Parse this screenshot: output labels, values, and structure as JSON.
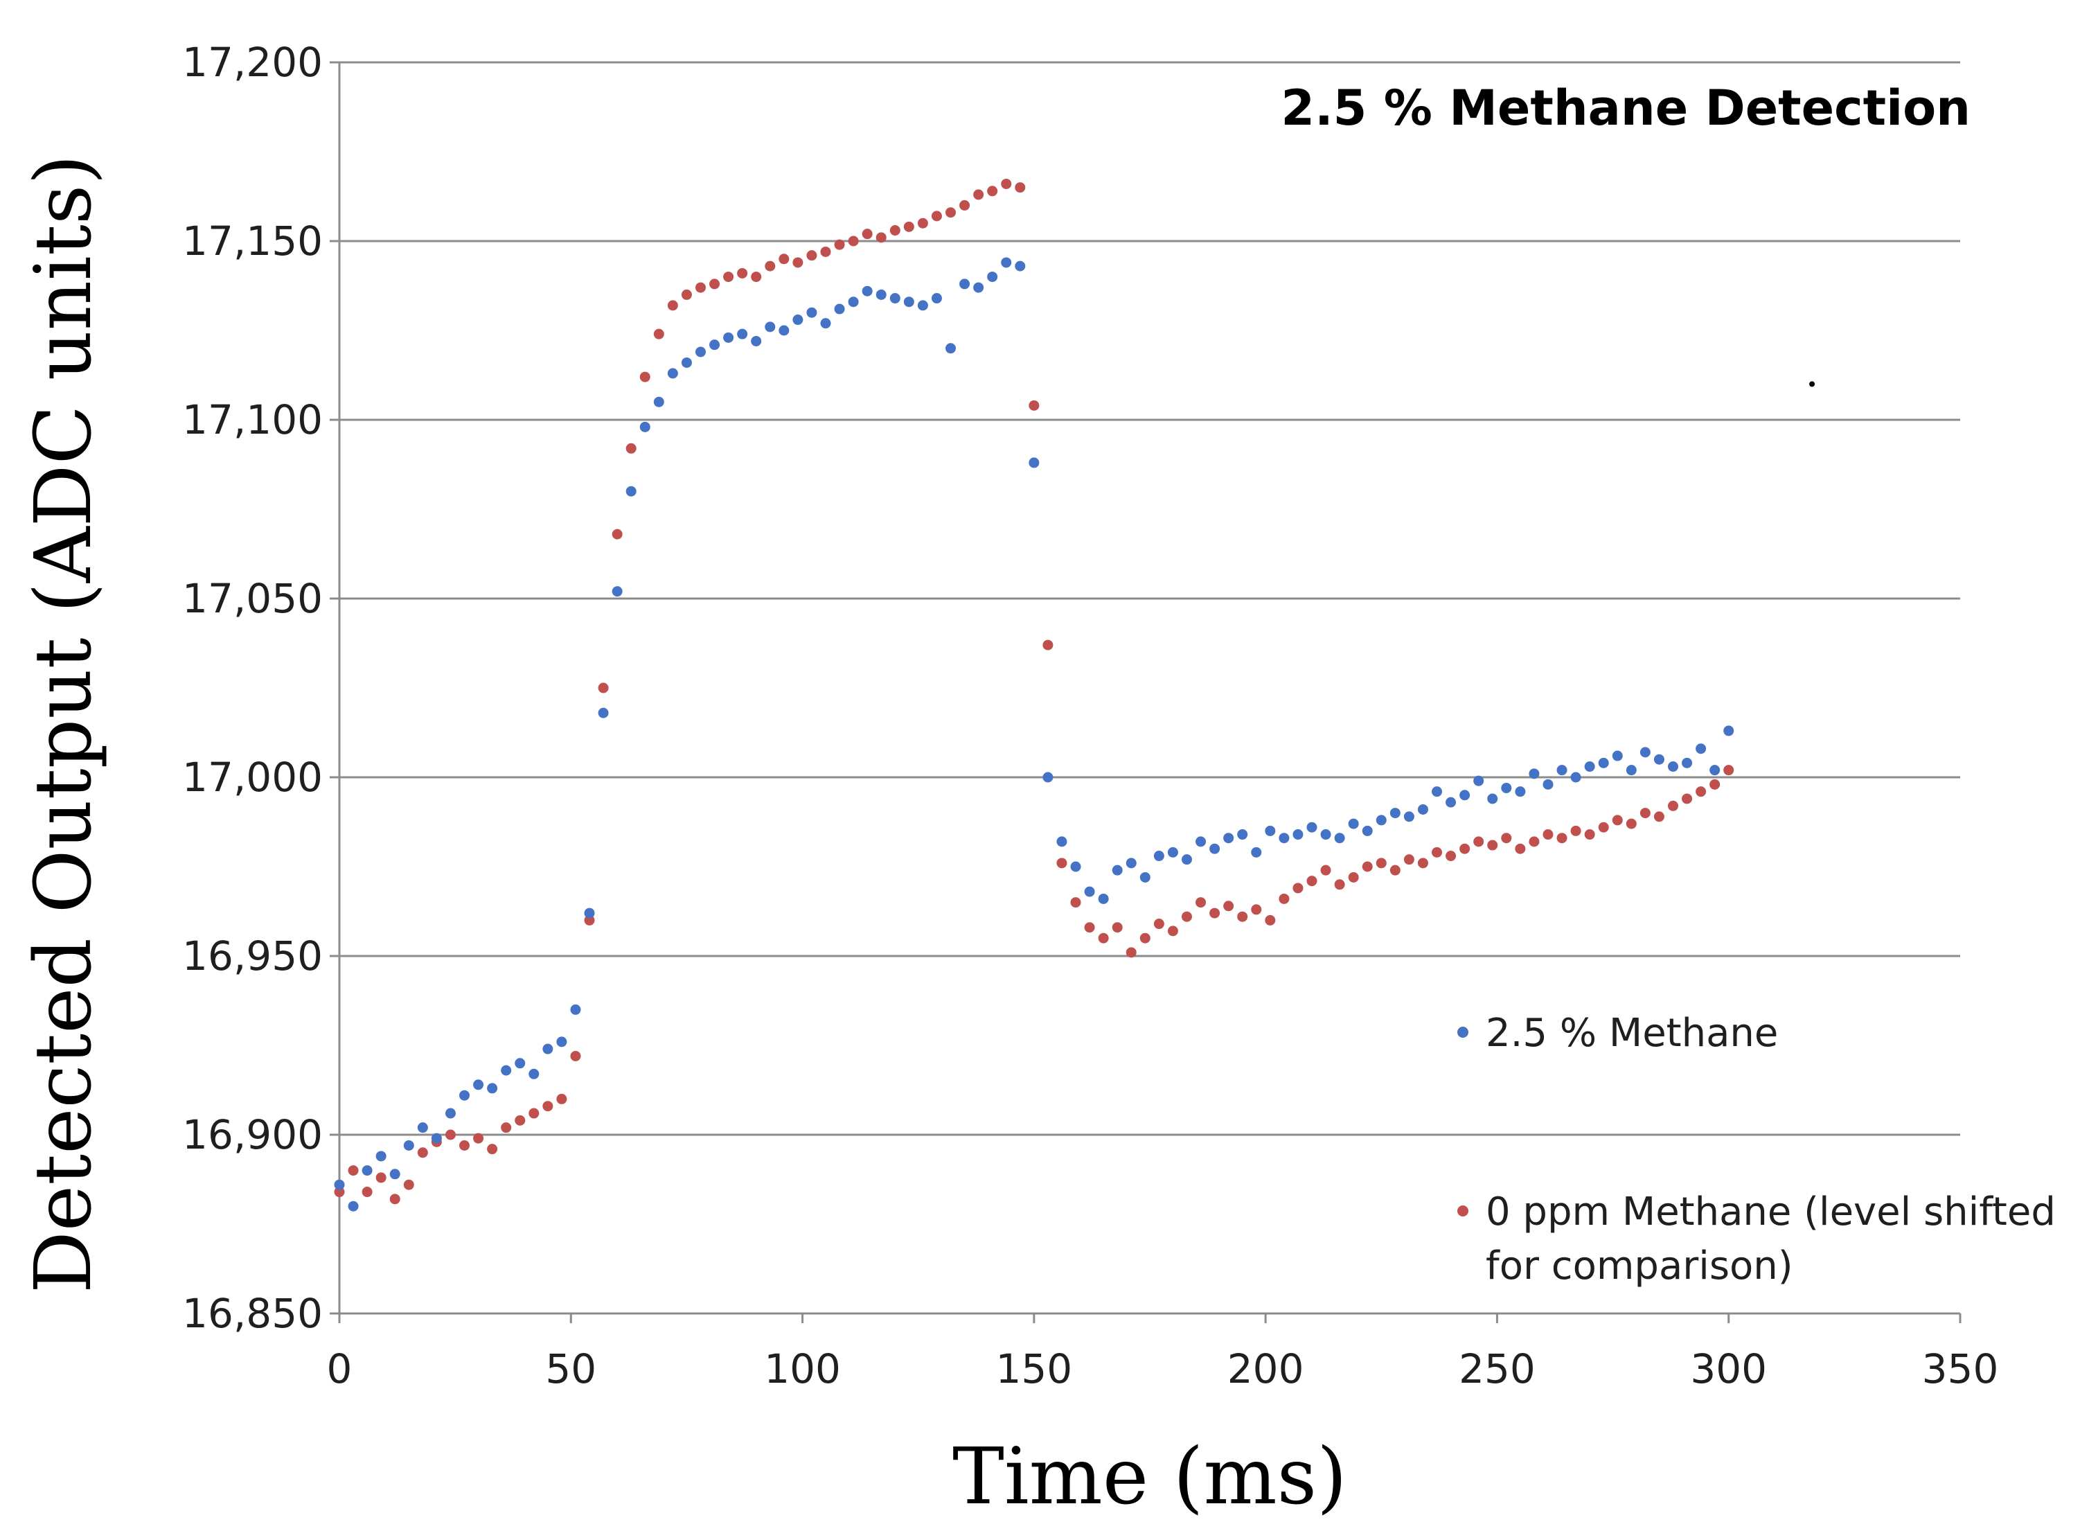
{
  "chart_data": {
    "type": "scatter",
    "title": "2.5 % Methane Detection",
    "xlabel": "Time (ms)",
    "ylabel": "Detected Output (ADC units)",
    "xlim": [
      0,
      350
    ],
    "ylim": [
      16850,
      17200
    ],
    "x_ticks": [
      0,
      50,
      100,
      150,
      200,
      250,
      300,
      350
    ],
    "x_tick_labels": [
      "0",
      "50",
      "100",
      "150",
      "200",
      "250",
      "300",
      "350"
    ],
    "y_ticks": [
      16850,
      16900,
      16950,
      17000,
      17050,
      17100,
      17150,
      17200
    ],
    "y_tick_labels": [
      "16,850",
      "16,900",
      "16,950",
      "17,000",
      "17,050",
      "17,100",
      "17,150",
      "17,200"
    ],
    "grid": "horizontal",
    "legend_position": "lower-right",
    "series": [
      {
        "name": "2.5 % Methane",
        "color": "#4472c4",
        "x": [
          0,
          3,
          6,
          9,
          12,
          15,
          18,
          21,
          24,
          27,
          30,
          33,
          36,
          39,
          42,
          45,
          48,
          51,
          54,
          57,
          60,
          63,
          66,
          69,
          72,
          75,
          78,
          81,
          84,
          87,
          90,
          93,
          96,
          99,
          102,
          105,
          108,
          111,
          114,
          117,
          120,
          123,
          126,
          129,
          132,
          135,
          138,
          141,
          144,
          147,
          150,
          153,
          156,
          159,
          162,
          165,
          168,
          171,
          174,
          177,
          180,
          183,
          186,
          189,
          192,
          195,
          198,
          201,
          204,
          207,
          210,
          213,
          216,
          219,
          222,
          225,
          228,
          231,
          234,
          237,
          240,
          243,
          246,
          249,
          252,
          255,
          258,
          261,
          264,
          267,
          270,
          273,
          276,
          279,
          282,
          285,
          288,
          291,
          294,
          297,
          300
        ],
        "y": [
          16886,
          16880,
          16890,
          16894,
          16889,
          16897,
          16902,
          16899,
          16906,
          16911,
          16914,
          16913,
          16918,
          16920,
          16917,
          16924,
          16926,
          16935,
          16962,
          17018,
          17052,
          17080,
          17098,
          17105,
          17113,
          17116,
          17119,
          17121,
          17123,
          17124,
          17122,
          17126,
          17125,
          17128,
          17130,
          17127,
          17131,
          17133,
          17136,
          17135,
          17134,
          17133,
          17132,
          17134,
          17120,
          17138,
          17137,
          17140,
          17144,
          17143,
          17088,
          17000,
          16982,
          16975,
          16968,
          16966,
          16974,
          16976,
          16972,
          16978,
          16979,
          16977,
          16982,
          16980,
          16983,
          16984,
          16979,
          16985,
          16983,
          16984,
          16986,
          16984,
          16983,
          16987,
          16985,
          16988,
          16990,
          16989,
          16991,
          16996,
          16993,
          16995,
          16999,
          16994,
          16997,
          16996,
          17001,
          16998,
          17002,
          17000,
          17003,
          17004,
          17006,
          17002,
          17007,
          17005,
          17003,
          17004,
          17008,
          17002,
          17013
        ]
      },
      {
        "name": "0 ppm Methane (level shifted for comparison)",
        "color": "#c0504d",
        "x": [
          0,
          3,
          6,
          9,
          12,
          15,
          18,
          21,
          24,
          27,
          30,
          33,
          36,
          39,
          42,
          45,
          48,
          51,
          54,
          57,
          60,
          63,
          66,
          69,
          72,
          75,
          78,
          81,
          84,
          87,
          90,
          93,
          96,
          99,
          102,
          105,
          108,
          111,
          114,
          117,
          120,
          123,
          126,
          129,
          132,
          135,
          138,
          141,
          144,
          147,
          150,
          153,
          156,
          159,
          162,
          165,
          168,
          171,
          174,
          177,
          180,
          183,
          186,
          189,
          192,
          195,
          198,
          201,
          204,
          207,
          210,
          213,
          216,
          219,
          222,
          225,
          228,
          231,
          234,
          237,
          240,
          243,
          246,
          249,
          252,
          255,
          258,
          261,
          264,
          267,
          270,
          273,
          276,
          279,
          282,
          285,
          288,
          291,
          294,
          297,
          300
        ],
        "y": [
          16884,
          16890,
          16884,
          16888,
          16882,
          16886,
          16895,
          16898,
          16900,
          16897,
          16899,
          16896,
          16902,
          16904,
          16906,
          16908,
          16910,
          16922,
          16960,
          17025,
          17068,
          17092,
          17112,
          17124,
          17132,
          17135,
          17137,
          17138,
          17140,
          17141,
          17140,
          17143,
          17145,
          17144,
          17146,
          17147,
          17149,
          17150,
          17152,
          17151,
          17153,
          17154,
          17155,
          17157,
          17158,
          17160,
          17163,
          17164,
          17166,
          17165,
          17104,
          17037,
          16976,
          16965,
          16958,
          16955,
          16958,
          16951,
          16955,
          16959,
          16957,
          16961,
          16965,
          16962,
          16964,
          16961,
          16963,
          16960,
          16966,
          16969,
          16971,
          16974,
          16970,
          16972,
          16975,
          16976,
          16974,
          16977,
          16976,
          16979,
          16978,
          16980,
          16982,
          16981,
          16983,
          16980,
          16982,
          16984,
          16983,
          16985,
          16984,
          16986,
          16988,
          16987,
          16990,
          16989,
          16992,
          16994,
          16996,
          16998,
          17002
        ]
      }
    ],
    "stray_points": [
      {
        "x": 318,
        "y": 17110
      }
    ]
  }
}
